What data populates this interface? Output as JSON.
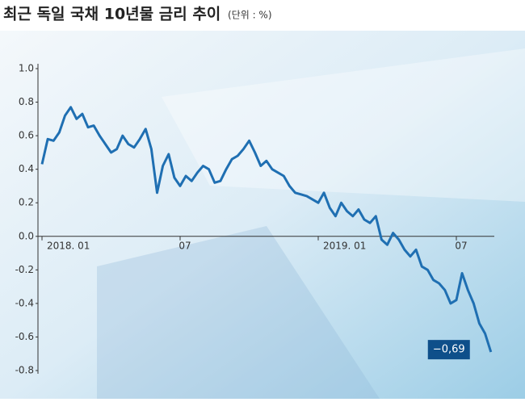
{
  "chart_data": {
    "type": "line",
    "title": "최근 독일 국채 10년물 금리 추이",
    "subtitle": "(단위 : %)",
    "x": [
      0,
      0.25,
      0.5,
      0.75,
      1,
      1.25,
      1.5,
      1.75,
      2,
      2.25,
      2.5,
      2.75,
      3,
      3.25,
      3.5,
      3.75,
      4,
      4.25,
      4.5,
      4.75,
      5,
      5.25,
      5.5,
      5.75,
      6,
      6.25,
      6.5,
      6.75,
      7,
      7.25,
      7.5,
      7.75,
      8,
      8.25,
      8.5,
      8.75,
      9,
      9.25,
      9.5,
      9.75,
      10,
      10.25,
      10.5,
      10.75,
      11,
      11.25,
      11.5,
      11.75,
      12,
      12.25,
      12.5,
      12.75,
      13,
      13.25,
      13.5,
      13.75,
      14,
      14.25,
      14.5,
      14.75,
      15,
      15.25,
      15.5,
      15.75,
      16,
      16.25,
      16.5,
      16.75,
      17,
      17.25,
      17.5,
      17.75,
      18,
      18.25,
      18.5,
      18.75,
      19,
      19.25,
      19.5
    ],
    "series": [
      {
        "color": "#1f6fb2",
        "values": [
          0.43,
          0.58,
          0.57,
          0.62,
          0.72,
          0.77,
          0.7,
          0.73,
          0.65,
          0.66,
          0.6,
          0.55,
          0.5,
          0.52,
          0.6,
          0.55,
          0.53,
          0.58,
          0.64,
          0.52,
          0.26,
          0.42,
          0.49,
          0.35,
          0.3,
          0.36,
          0.33,
          0.38,
          0.42,
          0.4,
          0.32,
          0.33,
          0.4,
          0.46,
          0.48,
          0.52,
          0.57,
          0.5,
          0.42,
          0.45,
          0.4,
          0.38,
          0.36,
          0.3,
          0.26,
          0.25,
          0.24,
          0.22,
          0.2,
          0.26,
          0.17,
          0.12,
          0.2,
          0.15,
          0.12,
          0.16,
          0.1,
          0.08,
          0.12,
          -0.02,
          -0.05,
          0.02,
          -0.02,
          -0.08,
          -0.12,
          -0.08,
          -0.18,
          -0.2,
          -0.26,
          -0.28,
          -0.32,
          -0.4,
          -0.38,
          -0.22,
          -0.32,
          -0.4,
          -0.52,
          -0.58,
          -0.69
        ],
        "value_labels": [
          null,
          null,
          null,
          null,
          null,
          null,
          null,
          null,
          null,
          null,
          null,
          null,
          null,
          null,
          null,
          null,
          null,
          null,
          null,
          null,
          null,
          null,
          null,
          null,
          null,
          null,
          null,
          null,
          null,
          null,
          null,
          null,
          null,
          null,
          null,
          null,
          null,
          null,
          null,
          null,
          null,
          null,
          null,
          null,
          null,
          null,
          null,
          null,
          null,
          null,
          null,
          null,
          null,
          null,
          null,
          null,
          null,
          null,
          null,
          null,
          null,
          null,
          null,
          null,
          null,
          null,
          null,
          null,
          null,
          null,
          null,
          null,
          null,
          null,
          null,
          null,
          null,
          null,
          "−0,69"
        ]
      }
    ],
    "xlim": [
      0,
      20
    ],
    "xticks": [
      {
        "value": 0,
        "label": "2018. 01"
      },
      {
        "value": 6,
        "label": "07"
      },
      {
        "value": 12,
        "label": "2019. 01"
      },
      {
        "value": 18,
        "label": "07"
      }
    ],
    "ylim": [
      -0.8,
      1.0
    ],
    "yticks": [
      {
        "value": 1.0,
        "label": "1.0"
      },
      0.8,
      0.6,
      0.4,
      0.2,
      {
        "value": 0,
        "label": "0.0"
      },
      -0.2,
      -0.4,
      -0.6,
      -0.8
    ]
  }
}
